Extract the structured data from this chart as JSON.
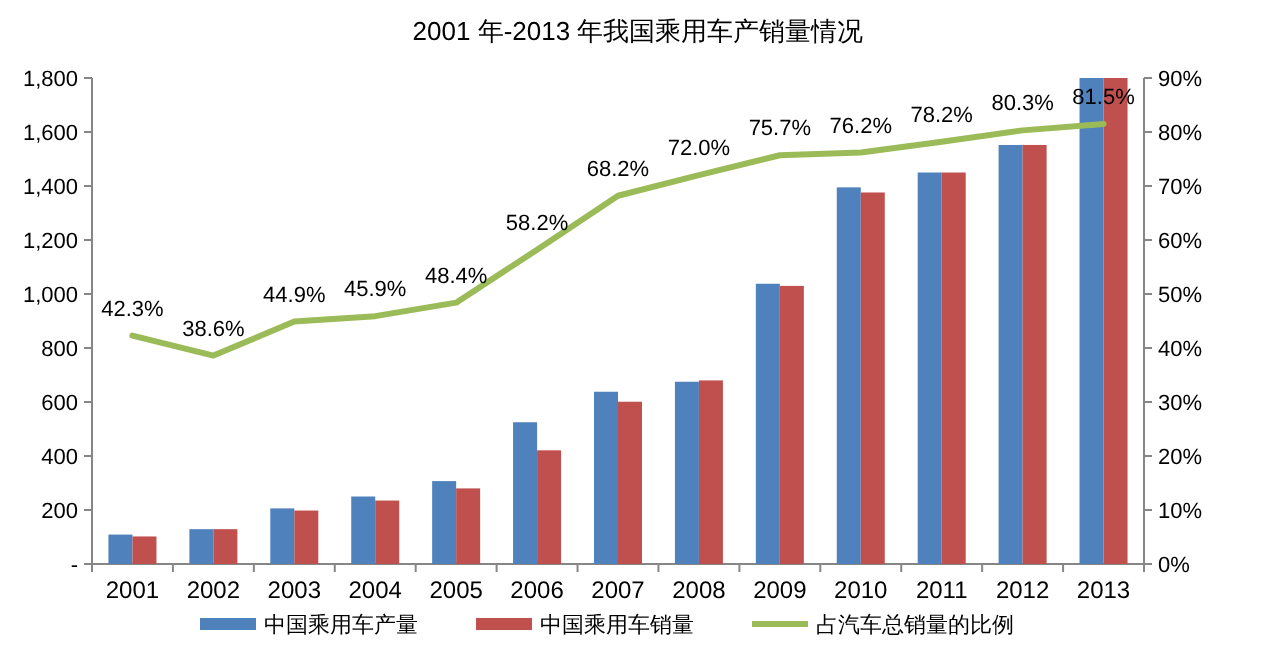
{
  "chart_data": {
    "type": "bar",
    "title": "2001 年-2013 年我国乘用车产销量情况",
    "categories": [
      "2001",
      "2002",
      "2003",
      "2004",
      "2005",
      "2006",
      "2007",
      "2008",
      "2009",
      "2010",
      "2011",
      "2012",
      "2013"
    ],
    "series": [
      {
        "name": "中国乘用车产量",
        "color": "#4f81bd",
        "values": [
          109,
          129,
          206,
          250,
          307,
          525,
          638,
          675,
          1038,
          1395,
          1450,
          1552,
          1800
        ]
      },
      {
        "name": "中国乘用车销量",
        "color": "#c0504d",
        "values": [
          102,
          129,
          198,
          235,
          280,
          421,
          601,
          680,
          1030,
          1376,
          1450,
          1552,
          1800
        ]
      },
      {
        "name": "占汽车总销量的比例",
        "type": "line",
        "axis": "y2",
        "color": "#9bbb59",
        "values": [
          42.3,
          38.6,
          44.9,
          45.9,
          48.4,
          58.2,
          68.2,
          72.0,
          75.7,
          76.2,
          78.2,
          80.3,
          81.5
        ],
        "value_labels": [
          "42.3%",
          "38.6%",
          "44.9%",
          "45.9%",
          "48.4%",
          "58.2%",
          "68.2%",
          "72.0%",
          "75.7%",
          "76.2%",
          "78.2%",
          "80.3%",
          "81.5%"
        ]
      }
    ],
    "ylim": [
      0,
      1800
    ],
    "yticks": [
      {
        "value": 0,
        "label": "-"
      },
      200,
      400,
      600,
      800,
      {
        "value": 1000,
        "label": "1,000"
      },
      {
        "value": 1200,
        "label": "1,200"
      },
      {
        "value": 1400,
        "label": "1,400"
      },
      {
        "value": 1600,
        "label": "1,600"
      },
      {
        "value": 1800,
        "label": "1,800"
      }
    ],
    "y2lim": [
      0,
      90
    ],
    "y2ticks": [
      {
        "value": 0,
        "label": "0%"
      },
      {
        "value": 10,
        "label": "10%"
      },
      {
        "value": 20,
        "label": "20%"
      },
      {
        "value": 30,
        "label": "30%"
      },
      {
        "value": 40,
        "label": "40%"
      },
      {
        "value": 50,
        "label": "50%"
      },
      {
        "value": 60,
        "label": "60%"
      },
      {
        "value": 70,
        "label": "70%"
      },
      {
        "value": 80,
        "label": "80%"
      },
      {
        "value": 90,
        "label": "90%"
      }
    ],
    "legend": "bottom"
  }
}
